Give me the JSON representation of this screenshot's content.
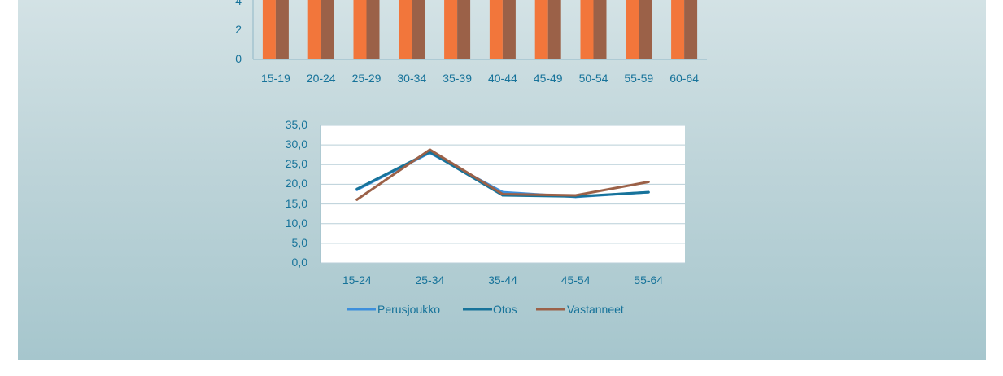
{
  "chart_data": [
    {
      "type": "bar",
      "categories": [
        "15-19",
        "20-24",
        "25-29",
        "30-34",
        "35-39",
        "40-44",
        "45-49",
        "50-54",
        "55-59",
        "60-64"
      ],
      "y_tick_labels": [
        "0",
        "2",
        "4"
      ],
      "ylim": [
        0,
        4
      ],
      "series": [
        {
          "values": [
            4,
            4,
            4,
            4,
            4,
            4,
            4,
            4,
            4,
            4
          ],
          "color": "#f2763b"
        },
        {
          "values": [
            4,
            4,
            4,
            4,
            4,
            4,
            4,
            4,
            4,
            4
          ],
          "color": "#9b6148"
        }
      ],
      "note_visible": "bars extend above the visible crop"
    },
    {
      "type": "line",
      "categories": [
        "15-24",
        "25-34",
        "35-44",
        "45-54",
        "55-64"
      ],
      "y_tick_labels": [
        "0,0",
        "5,0",
        "10,0",
        "15,0",
        "20,0",
        "25,0",
        "30,0",
        "35,0"
      ],
      "ylim": [
        0,
        35
      ],
      "grid": true,
      "legend_position": "bottom",
      "series": [
        {
          "name": "Perusjoukko",
          "values": [
            18.6,
            28.0,
            18.0,
            16.8,
            18.0
          ],
          "color": "#3d8fdc"
        },
        {
          "name": "Otos",
          "values": [
            18.8,
            28.2,
            17.2,
            16.9,
            18.0
          ],
          "color": "#17739a"
        },
        {
          "name": "Vastanneet",
          "values": [
            16.1,
            28.8,
            17.5,
            17.2,
            20.6
          ],
          "color": "#9b6148"
        }
      ]
    }
  ]
}
